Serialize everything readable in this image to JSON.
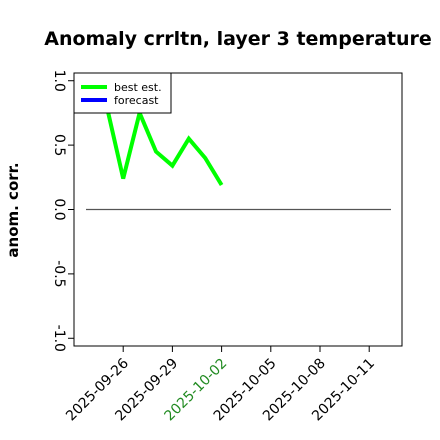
{
  "chart_data": {
    "type": "line",
    "title": "Anomaly crrltn, layer 3 temperature",
    "xlabel": "",
    "ylabel": "anom. corr.",
    "ylim": [
      -1.0,
      1.0
    ],
    "xlim": [
      "2025-09-23",
      "2025-10-13"
    ],
    "yticks": [
      "-1.0",
      "-0.5",
      "0.0",
      "0.5",
      "1.0"
    ],
    "xticks": [
      "2025-09-26",
      "2025-09-29",
      "2025-10-02",
      "2025-10-05",
      "2025-10-08",
      "2025-10-11"
    ],
    "highlighted_xtick": "2025-10-02",
    "highlight_color": "#228B22",
    "reference_line_y": 0.0,
    "grid": false,
    "legend_position": "top-left",
    "series": [
      {
        "name": "best est.",
        "color": "#00ff00",
        "x": [
          "2025-09-25",
          "2025-09-26",
          "2025-09-27",
          "2025-09-28",
          "2025-09-29",
          "2025-09-30",
          "2025-10-01",
          "2025-10-02"
        ],
        "y": [
          0.8,
          0.24,
          0.75,
          0.45,
          0.34,
          0.55,
          0.4,
          0.19
        ]
      },
      {
        "name": "forecast",
        "color": "#0000ff",
        "x": [],
        "y": []
      }
    ]
  }
}
